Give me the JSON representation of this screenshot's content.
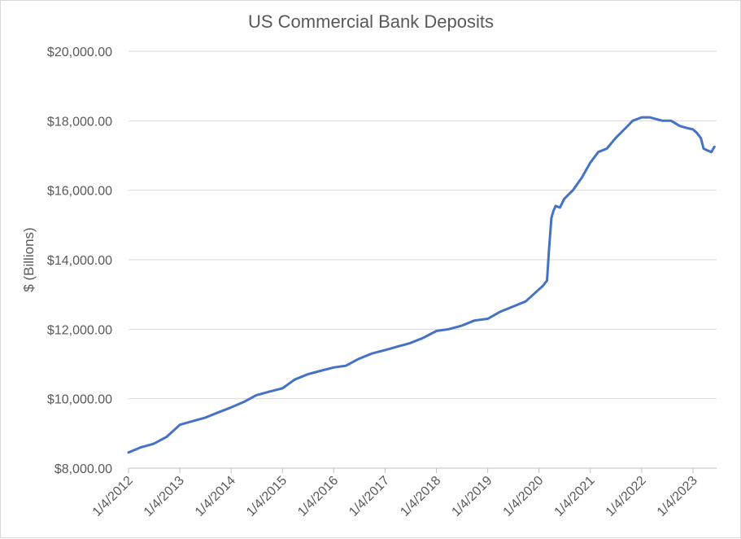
{
  "chart_data": {
    "type": "line",
    "title": "US Commercial Bank Deposits",
    "xlabel": "",
    "ylabel": "$ (Billions)",
    "ylim": [
      8000,
      20000
    ],
    "y_ticks": [
      8000,
      10000,
      12000,
      14000,
      16000,
      18000,
      20000
    ],
    "y_tick_labels": [
      "$8,000.00",
      "$10,000.00",
      "$12,000.00",
      "$14,000.00",
      "$16,000.00",
      "$18,000.00",
      "$20,000.00"
    ],
    "x_tick_labels": [
      "1/4/2012",
      "1/4/2013",
      "1/4/2014",
      "1/4/2015",
      "1/4/2016",
      "1/4/2017",
      "1/4/2018",
      "1/4/2019",
      "1/4/2020",
      "1/4/2021",
      "1/4/2022",
      "1/4/2023"
    ],
    "grid": true,
    "legend": "none",
    "line_color": "#4472c4",
    "series": [
      {
        "x": [
          "2012-01-04",
          "2012-04-01",
          "2012-07-01",
          "2012-10-01",
          "2013-01-04",
          "2013-04-01",
          "2013-07-01",
          "2013-10-01",
          "2014-01-04",
          "2014-04-01",
          "2014-07-01",
          "2014-10-01",
          "2015-01-04",
          "2015-04-01",
          "2015-07-01",
          "2015-10-01",
          "2016-01-04",
          "2016-04-01",
          "2016-07-01",
          "2016-10-01",
          "2017-01-04",
          "2017-04-01",
          "2017-07-01",
          "2017-10-01",
          "2018-01-04",
          "2018-04-01",
          "2018-07-01",
          "2018-10-01",
          "2019-01-04",
          "2019-04-01",
          "2019-07-01",
          "2019-10-01",
          "2020-01-04",
          "2020-02-01",
          "2020-03-01",
          "2020-03-15",
          "2020-04-01",
          "2020-04-15",
          "2020-05-01",
          "2020-06-01",
          "2020-07-01",
          "2020-09-01",
          "2020-11-01",
          "2021-01-04",
          "2021-03-01",
          "2021-05-01",
          "2021-07-01",
          "2021-09-01",
          "2021-11-01",
          "2022-01-04",
          "2022-02-01",
          "2022-03-01",
          "2022-04-15",
          "2022-06-01",
          "2022-08-01",
          "2022-10-01",
          "2022-11-15",
          "2023-01-04",
          "2023-02-01",
          "2023-03-01",
          "2023-03-20",
          "2023-04-15",
          "2023-05-15",
          "2023-06-05"
        ],
        "values": [
          8450,
          8600,
          8700,
          8900,
          9250,
          9350,
          9450,
          9600,
          9750,
          9900,
          10100,
          10200,
          10300,
          10550,
          10700,
          10800,
          10900,
          10950,
          11150,
          11300,
          11400,
          11500,
          11600,
          11750,
          11950,
          12000,
          12100,
          12250,
          12300,
          12500,
          12650,
          12800,
          13150,
          13250,
          13400,
          14300,
          15200,
          15400,
          15550,
          15500,
          15750,
          16000,
          16350,
          16800,
          17100,
          17200,
          17500,
          17750,
          18000,
          18100,
          18100,
          18100,
          18050,
          18000,
          18000,
          17850,
          17800,
          17750,
          17650,
          17500,
          17200,
          17150,
          17100,
          17250
        ]
      }
    ]
  }
}
